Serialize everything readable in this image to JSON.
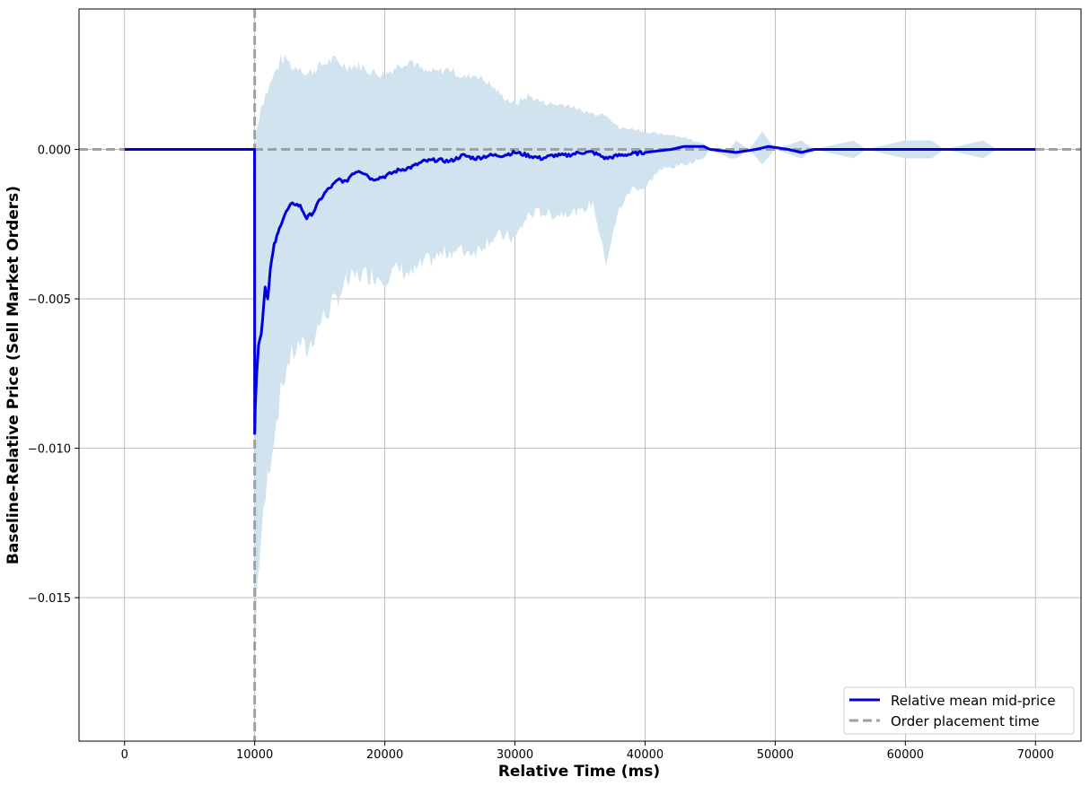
{
  "chart_data": {
    "type": "line",
    "title": "",
    "xlabel": "Relative Time (ms)",
    "ylabel": "Baseline-Relative Price (Sell Market Orders)",
    "xlim": [
      -3500,
      73500
    ],
    "ylim": [
      -0.0198,
      0.0047
    ],
    "x_ticks": [
      0,
      10000,
      20000,
      30000,
      40000,
      50000,
      60000,
      70000
    ],
    "x_tick_labels": [
      "0",
      "10000",
      "20000",
      "30000",
      "40000",
      "50000",
      "60000",
      "70000"
    ],
    "y_ticks": [
      0.0,
      -0.005,
      -0.01,
      -0.015
    ],
    "y_tick_labels": [
      "0.000",
      "−0.005",
      "−0.010",
      "−0.015"
    ],
    "grid": true,
    "legend_position": "lower-right",
    "colors": {
      "mean_line": "#0000dd",
      "band": "#d1e3ef",
      "reference": "#a0a0a0",
      "grid": "#b0b0b0"
    },
    "series": [
      {
        "name": "Relative mean mid-price",
        "style": "solid",
        "x": [
          0,
          9990,
          10000,
          10050,
          10150,
          10300,
          10500,
          10800,
          11000,
          11200,
          11500,
          11800,
          12000,
          12300,
          12700,
          13000,
          13500,
          14000,
          14500,
          15000,
          15500,
          16000,
          16500,
          17000,
          17500,
          18000,
          18500,
          19000,
          20000,
          21000,
          22000,
          23000,
          24000,
          25000,
          26000,
          27000,
          28000,
          29000,
          30000,
          31000,
          32000,
          33000,
          34000,
          35000,
          36000,
          37000,
          38000,
          40000,
          42000,
          43000,
          44500,
          45000,
          47000,
          48500,
          49500,
          51000,
          52000,
          53000,
          55000,
          60000,
          65000,
          70000
        ],
        "y": [
          0.0,
          0.0,
          -0.0095,
          -0.0085,
          -0.0075,
          -0.0065,
          -0.0062,
          -0.0046,
          -0.005,
          -0.004,
          -0.0032,
          -0.0028,
          -0.0025,
          -0.0022,
          -0.0019,
          -0.0018,
          -0.0019,
          -0.0023,
          -0.0021,
          -0.0017,
          -0.0014,
          -0.0012,
          -0.001,
          -0.0011,
          -0.0008,
          -0.0007,
          -0.0008,
          -0.001,
          -0.0009,
          -0.0007,
          -0.0006,
          -0.0004,
          -0.00035,
          -0.0004,
          -0.0002,
          -0.0003,
          -0.0002,
          -0.0002,
          -0.0001,
          -0.0002,
          -0.0003,
          -0.0002,
          -0.0002,
          -0.0001,
          -0.0001,
          -0.0003,
          -0.0002,
          -0.0001,
          0.0,
          0.0001,
          0.0001,
          0.0,
          -0.0001,
          0.0,
          0.0001,
          0.0,
          -0.0001,
          0.0,
          0.0,
          0.0,
          0.0,
          0.0
        ]
      },
      {
        "name": "Order placement time",
        "style": "dashed",
        "x": [
          10000,
          10000
        ],
        "y": [
          -0.0198,
          0.0047
        ]
      }
    ],
    "band": {
      "x": [
        0,
        9990,
        10000,
        10200,
        10500,
        11000,
        11500,
        12000,
        12500,
        13000,
        13500,
        14000,
        15000,
        16000,
        17000,
        18000,
        19000,
        20000,
        21000,
        22000,
        23000,
        24000,
        25000,
        26000,
        27000,
        28000,
        29000,
        30000,
        31000,
        32000,
        33000,
        34000,
        35000,
        36000,
        37000,
        38000,
        39000,
        40000,
        41000,
        42000,
        43000,
        44500,
        45000,
        46500,
        47000,
        48000,
        49000,
        50000,
        52000,
        53000,
        56000,
        57000,
        60000,
        62000,
        63000,
        66000,
        67000,
        70000
      ],
      "upper": [
        0.0,
        0.0,
        0.0,
        0.0008,
        0.0015,
        0.002,
        0.0025,
        0.003,
        0.003,
        0.0027,
        0.0028,
        0.0025,
        0.0028,
        0.003,
        0.0028,
        0.0028,
        0.0026,
        0.0025,
        0.0028,
        0.003,
        0.0026,
        0.0026,
        0.0027,
        0.0024,
        0.0025,
        0.0022,
        0.0018,
        0.0015,
        0.0018,
        0.0016,
        0.0015,
        0.0015,
        0.0013,
        0.0012,
        0.0012,
        0.0007,
        0.0007,
        0.0006,
        0.0005,
        0.0005,
        0.0004,
        0.0002,
        0.0,
        0.0,
        0.0003,
        0.0,
        0.0006,
        0.0,
        0.0003,
        0.0,
        0.0003,
        0.0,
        0.0003,
        0.0003,
        0.0,
        0.0003,
        0.0,
        0.0
      ],
      "lower": [
        0.0,
        0.0,
        -0.017,
        -0.0145,
        -0.013,
        -0.011,
        -0.0095,
        -0.0082,
        -0.0072,
        -0.0068,
        -0.0065,
        -0.0068,
        -0.0058,
        -0.0052,
        -0.0045,
        -0.0042,
        -0.0042,
        -0.0043,
        -0.004,
        -0.0042,
        -0.0038,
        -0.0036,
        -0.0034,
        -0.0034,
        -0.0034,
        -0.003,
        -0.0029,
        -0.003,
        -0.0022,
        -0.0021,
        -0.0022,
        -0.0021,
        -0.0021,
        -0.0018,
        -0.0038,
        -0.002,
        -0.0013,
        -0.0013,
        -0.0007,
        -0.0006,
        -0.0005,
        -0.0003,
        0.0,
        -0.0003,
        -0.0003,
        0.0,
        -0.0005,
        0.0,
        -0.0003,
        0.0,
        -0.0003,
        0.0,
        -0.0003,
        -0.0003,
        0.0,
        -0.0003,
        0.0,
        0.0
      ]
    },
    "reference_lines": [
      {
        "orientation": "horizontal",
        "y": 0.0
      },
      {
        "orientation": "vertical",
        "x": 10000
      }
    ]
  }
}
